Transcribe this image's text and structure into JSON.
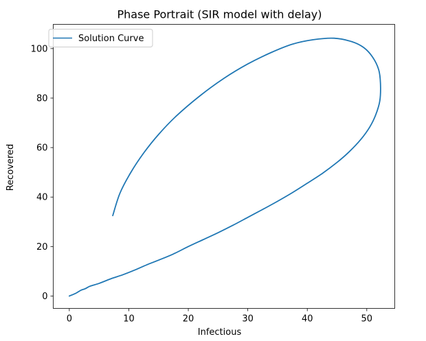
{
  "chart_data": {
    "type": "line",
    "title": "Phase Portrait (SIR model with delay)",
    "xlabel": "Infectious",
    "ylabel": "Recovered",
    "xlim": [
      -2.7,
      54.7
    ],
    "ylim": [
      -5,
      109.8
    ],
    "xticks": [
      0,
      10,
      20,
      30,
      40,
      50
    ],
    "yticks": [
      0,
      20,
      40,
      60,
      80,
      100
    ],
    "grid": false,
    "legend_position": "top-left",
    "series": [
      {
        "name": "Solution Curve",
        "color": "#1f77b4",
        "x": [
          0.0,
          0.5,
          1.0,
          1.5,
          2.0,
          2.7,
          3.5,
          5.0,
          7.0,
          9.0,
          11.0,
          13.0,
          15.0,
          17.5,
          20.0,
          22.5,
          25.0,
          27.5,
          30.0,
          32.5,
          35.0,
          37.5,
          40.0,
          42.5,
          45.0,
          47.0,
          49.0,
          50.5,
          51.5,
          52.2,
          52.3,
          52.0,
          51.0,
          49.5,
          47.5,
          44.5,
          41.0,
          37.5,
          34.0,
          30.0,
          26.0,
          22.0,
          18.0,
          15.0,
          12.5,
          10.3,
          8.5,
          7.3
        ],
        "y": [
          0.0,
          0.5,
          1.0,
          1.7,
          2.4,
          3.0,
          4.0,
          5.1,
          7.0,
          8.6,
          10.5,
          12.6,
          14.5,
          17.0,
          20.0,
          22.8,
          25.6,
          28.6,
          31.8,
          35.0,
          38.3,
          41.8,
          45.6,
          49.5,
          54.0,
          58.2,
          63.3,
          68.3,
          73.2,
          79.0,
          86.0,
          91.5,
          96.5,
          100.4,
          102.8,
          104.2,
          103.6,
          101.8,
          98.5,
          93.8,
          88.0,
          81.0,
          72.8,
          65.3,
          57.8,
          49.8,
          41.5,
          32.5
        ]
      }
    ]
  }
}
